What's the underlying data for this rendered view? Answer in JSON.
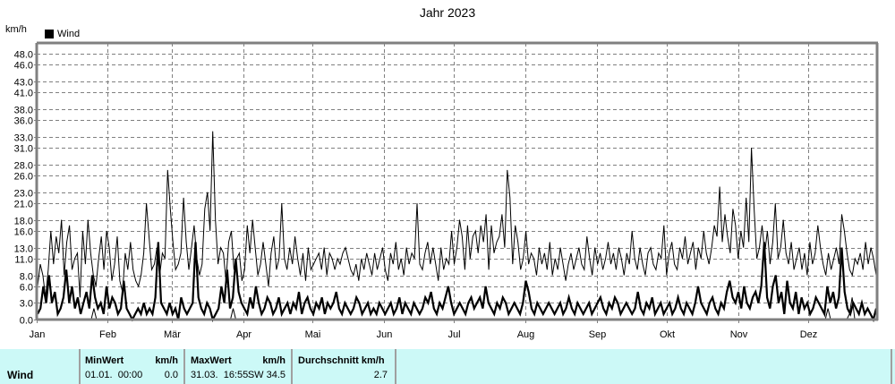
{
  "title": "Jahr 2023",
  "unit_label": "km/h",
  "legend": [
    {
      "label": "Wind",
      "color": "#000000"
    }
  ],
  "chart_data": {
    "type": "line",
    "title": "Jahr 2023",
    "xlabel": "",
    "ylabel": "km/h",
    "ylim": [
      0,
      50
    ],
    "yticks": [
      0.0,
      3.0,
      6.0,
      8.0,
      11.0,
      13.0,
      16.0,
      18.0,
      21.0,
      23.0,
      26.0,
      28.0,
      31.0,
      33.0,
      36.0,
      38.0,
      41.0,
      43.0,
      46.0,
      48.0
    ],
    "ytick_labels": [
      "0.0",
      "3.0",
      "6.0",
      "8.0",
      "11.0",
      "13.0",
      "16.0",
      "18.0",
      "21.0",
      "23.0",
      "26.0",
      "28.0",
      "31.0",
      "33.0",
      "36.0",
      "38.0",
      "41.0",
      "43.0",
      "46.0",
      "48.0"
    ],
    "categories": [
      "Jan",
      "Feb",
      "Mär",
      "Apr",
      "Mai",
      "Jun",
      "Jul",
      "Aug",
      "Sep",
      "Okt",
      "Nov",
      "Dez"
    ],
    "grid": true,
    "legend_position": "top-left",
    "series": [
      {
        "name": "Wind Max",
        "style": "thin",
        "values": [
          6,
          10,
          8,
          4,
          9,
          16,
          10,
          15,
          12,
          18,
          8,
          14,
          17,
          9,
          11,
          12,
          4,
          16,
          10,
          18,
          12,
          8,
          6,
          11,
          15,
          9,
          16,
          13,
          7,
          10,
          15,
          7,
          5,
          12,
          9,
          14,
          9,
          7,
          6,
          8,
          12,
          21,
          15,
          9,
          10,
          13,
          8,
          12,
          11,
          27,
          20,
          14,
          9,
          10,
          12,
          22,
          14,
          9,
          13,
          17,
          11,
          8,
          10,
          20,
          23,
          16,
          34,
          18,
          10,
          13,
          12,
          7,
          14,
          16,
          9,
          11,
          12,
          7,
          9,
          17,
          12,
          18,
          13,
          8,
          10,
          14,
          10,
          6,
          12,
          15,
          9,
          11,
          21,
          11,
          9,
          13,
          10,
          15,
          11,
          8,
          12,
          7,
          13,
          9,
          10,
          11,
          12,
          9,
          13,
          8,
          12,
          11,
          9,
          11,
          10,
          12,
          13,
          11,
          9,
          8,
          10,
          7,
          11,
          9,
          12,
          10,
          8,
          12,
          9,
          11,
          13,
          9,
          7,
          12,
          10,
          14,
          9,
          11,
          8,
          13,
          10,
          12,
          11,
          21,
          10,
          9,
          12,
          14,
          10,
          13,
          10,
          7,
          13,
          9,
          11,
          10,
          16,
          10,
          13,
          18,
          15,
          9,
          17,
          11,
          15,
          16,
          12,
          17,
          14,
          19,
          9,
          17,
          12,
          14,
          15,
          19,
          13,
          27,
          22,
          10,
          17,
          14,
          9,
          11,
          16,
          10,
          12,
          11,
          8,
          13,
          10,
          12,
          9,
          14,
          8,
          11,
          9,
          13,
          10,
          7,
          10,
          12,
          9,
          11,
          13,
          10,
          9,
          15,
          11,
          8,
          13,
          10,
          12,
          9,
          11,
          14,
          10,
          12,
          9,
          13,
          11,
          8,
          12,
          10,
          16,
          11,
          9,
          13,
          10,
          8,
          12,
          13,
          10,
          9,
          12,
          11,
          17,
          8,
          12,
          14,
          10,
          9,
          13,
          11,
          15,
          10,
          12,
          14,
          9,
          13,
          11,
          16,
          12,
          10,
          13,
          17,
          15,
          24,
          14,
          19,
          15,
          12,
          20,
          17,
          11,
          16,
          13,
          22,
          14,
          31,
          20,
          11,
          13,
          17,
          12,
          16,
          10,
          14,
          21,
          11,
          13,
          18,
          12,
          10,
          14,
          9,
          11,
          13,
          9,
          12,
          8,
          14,
          10,
          12,
          17,
          13,
          10,
          8,
          12,
          9,
          11,
          13,
          10,
          19,
          16,
          12,
          9,
          8,
          11,
          10,
          12,
          9,
          14,
          10,
          13,
          11,
          8
        ]
      },
      {
        "name": "Wind Avg",
        "style": "thick",
        "values": [
          1,
          2,
          6,
          3,
          8,
          3,
          5,
          1,
          2,
          4,
          9,
          3,
          6,
          2,
          4,
          1,
          3,
          5,
          2,
          8,
          4,
          2,
          3,
          1,
          6,
          2,
          4,
          3,
          1,
          2,
          7,
          2,
          1,
          0,
          1,
          2,
          1,
          3,
          1,
          2,
          1,
          4,
          14,
          3,
          2,
          1,
          3,
          1,
          2,
          0,
          4,
          2,
          1,
          2,
          3,
          14,
          4,
          2,
          1,
          3,
          2,
          0,
          1,
          2,
          6,
          3,
          9,
          2,
          4,
          11,
          5,
          3,
          2,
          1,
          4,
          2,
          6,
          3,
          1,
          2,
          4,
          3,
          1,
          2,
          4,
          1,
          2,
          3,
          1,
          3,
          2,
          5,
          1,
          3,
          4,
          2,
          1,
          3,
          2,
          4,
          1,
          3,
          2,
          3,
          5,
          2,
          1,
          3,
          2,
          1,
          2,
          4,
          3,
          1,
          2,
          3,
          1,
          2,
          1,
          3,
          2,
          1,
          2,
          3,
          1,
          2,
          4,
          1,
          3,
          2,
          1,
          3,
          2,
          1,
          2,
          4,
          3,
          5,
          2,
          1,
          3,
          2,
          4,
          6,
          3,
          1,
          2,
          3,
          2,
          1,
          3,
          4,
          2,
          3,
          4,
          2,
          6,
          3,
          2,
          1,
          3,
          2,
          4,
          3,
          1,
          2,
          3,
          2,
          1,
          3,
          7,
          5,
          2,
          1,
          3,
          2,
          1,
          2,
          3,
          2,
          1,
          2,
          3,
          1,
          2,
          4,
          2,
          1,
          3,
          2,
          1,
          2,
          3,
          1,
          2,
          3,
          4,
          2,
          1,
          3,
          2,
          4,
          3,
          1,
          2,
          3,
          2,
          1,
          2,
          5,
          2,
          1,
          3,
          2,
          4,
          1,
          2,
          3,
          1,
          2,
          3,
          1,
          2,
          4,
          2,
          1,
          3,
          2,
          1,
          3,
          6,
          3,
          2,
          1,
          3,
          4,
          2,
          1,
          3,
          2,
          5,
          7,
          4,
          3,
          5,
          2,
          6,
          3,
          2,
          4,
          5,
          3,
          6,
          14,
          4,
          2,
          6,
          8,
          3,
          5,
          1,
          7,
          3,
          2,
          5,
          1,
          4,
          2,
          3,
          1,
          2,
          4,
          3,
          2,
          1,
          6,
          3,
          5,
          2,
          4,
          13,
          5,
          2,
          1,
          3,
          2,
          1,
          3,
          1,
          2,
          1,
          0,
          2
        ]
      },
      {
        "name": "Wind Min",
        "style": "thin",
        "values": [
          0,
          0,
          0,
          0,
          0,
          0,
          0,
          0,
          0,
          0,
          0,
          0,
          0,
          0,
          0,
          0,
          0,
          0,
          0,
          0,
          0,
          2,
          0,
          0,
          0,
          0,
          0,
          0,
          0,
          0,
          0,
          0,
          0,
          0,
          0,
          0,
          0,
          0,
          0,
          0,
          0,
          0,
          0,
          0,
          0,
          0,
          0,
          0,
          0,
          0,
          0,
          0,
          0,
          0,
          0,
          0,
          0,
          0,
          0,
          0,
          0,
          0,
          0,
          0,
          0,
          0,
          0,
          0,
          0,
          0,
          0,
          0,
          0,
          2,
          0,
          0,
          0,
          0,
          0,
          0,
          0,
          0,
          0,
          0,
          0,
          0,
          0,
          0,
          0,
          0,
          0,
          0,
          0,
          0,
          0,
          0,
          0,
          0,
          0,
          0,
          0,
          0,
          0,
          0,
          0,
          0,
          0,
          0,
          0,
          0,
          0,
          0,
          0,
          0,
          0,
          0,
          0,
          0,
          0,
          0,
          0,
          0,
          0,
          0,
          0,
          0,
          0,
          0,
          0,
          0,
          0,
          0,
          0,
          0,
          0,
          0,
          0,
          0,
          0,
          0,
          0,
          0,
          0,
          0,
          0,
          0,
          0,
          0,
          0,
          0,
          0,
          0,
          0,
          0,
          0,
          0,
          0,
          0,
          0,
          0,
          0,
          0,
          0,
          0,
          0,
          0,
          0,
          0,
          0,
          0,
          0,
          0,
          0,
          0,
          0,
          0,
          0,
          0,
          0,
          0,
          0,
          0,
          0,
          0,
          0,
          0,
          0,
          0,
          0,
          0,
          0,
          0,
          0,
          0,
          0,
          0,
          0,
          0,
          0,
          0,
          0,
          0,
          0,
          0,
          0,
          0,
          0,
          0,
          0,
          0,
          0,
          0,
          0,
          0,
          0,
          0,
          0,
          0,
          0,
          0,
          0,
          0,
          0,
          0,
          0,
          0,
          0,
          0,
          0,
          0,
          0,
          0,
          0,
          0,
          0,
          0,
          0,
          0,
          0,
          0,
          0,
          0,
          0,
          0,
          0,
          0,
          0,
          0,
          0,
          0,
          0,
          0,
          0,
          0,
          0,
          0,
          0,
          0,
          0,
          0,
          0,
          0,
          0,
          0,
          0,
          0,
          0,
          0,
          0,
          0,
          0,
          0,
          0,
          0,
          0,
          0,
          0,
          0,
          0,
          0,
          0,
          0,
          0,
          0,
          0,
          0,
          0,
          0,
          0,
          0,
          0,
          0,
          0,
          0,
          0,
          2,
          0,
          0,
          0,
          0,
          0,
          0,
          0,
          1,
          4,
          0,
          0,
          0,
          0,
          0,
          0,
          0,
          0,
          0
        ]
      }
    ]
  },
  "stats_table": {
    "row_label": "Wind",
    "min_header": "MinWert",
    "min_unit": "km/h",
    "min_time": "01.01.  00:00",
    "min_value": "0.0",
    "max_header": "MaxWert",
    "max_unit": "km/h",
    "max_time": "31.03.  16:55",
    "max_dir_value": "SW 34.5",
    "avg_header": "Durchschnitt km/h",
    "avg_value": "2.7",
    "background": "#ccf9f7"
  }
}
